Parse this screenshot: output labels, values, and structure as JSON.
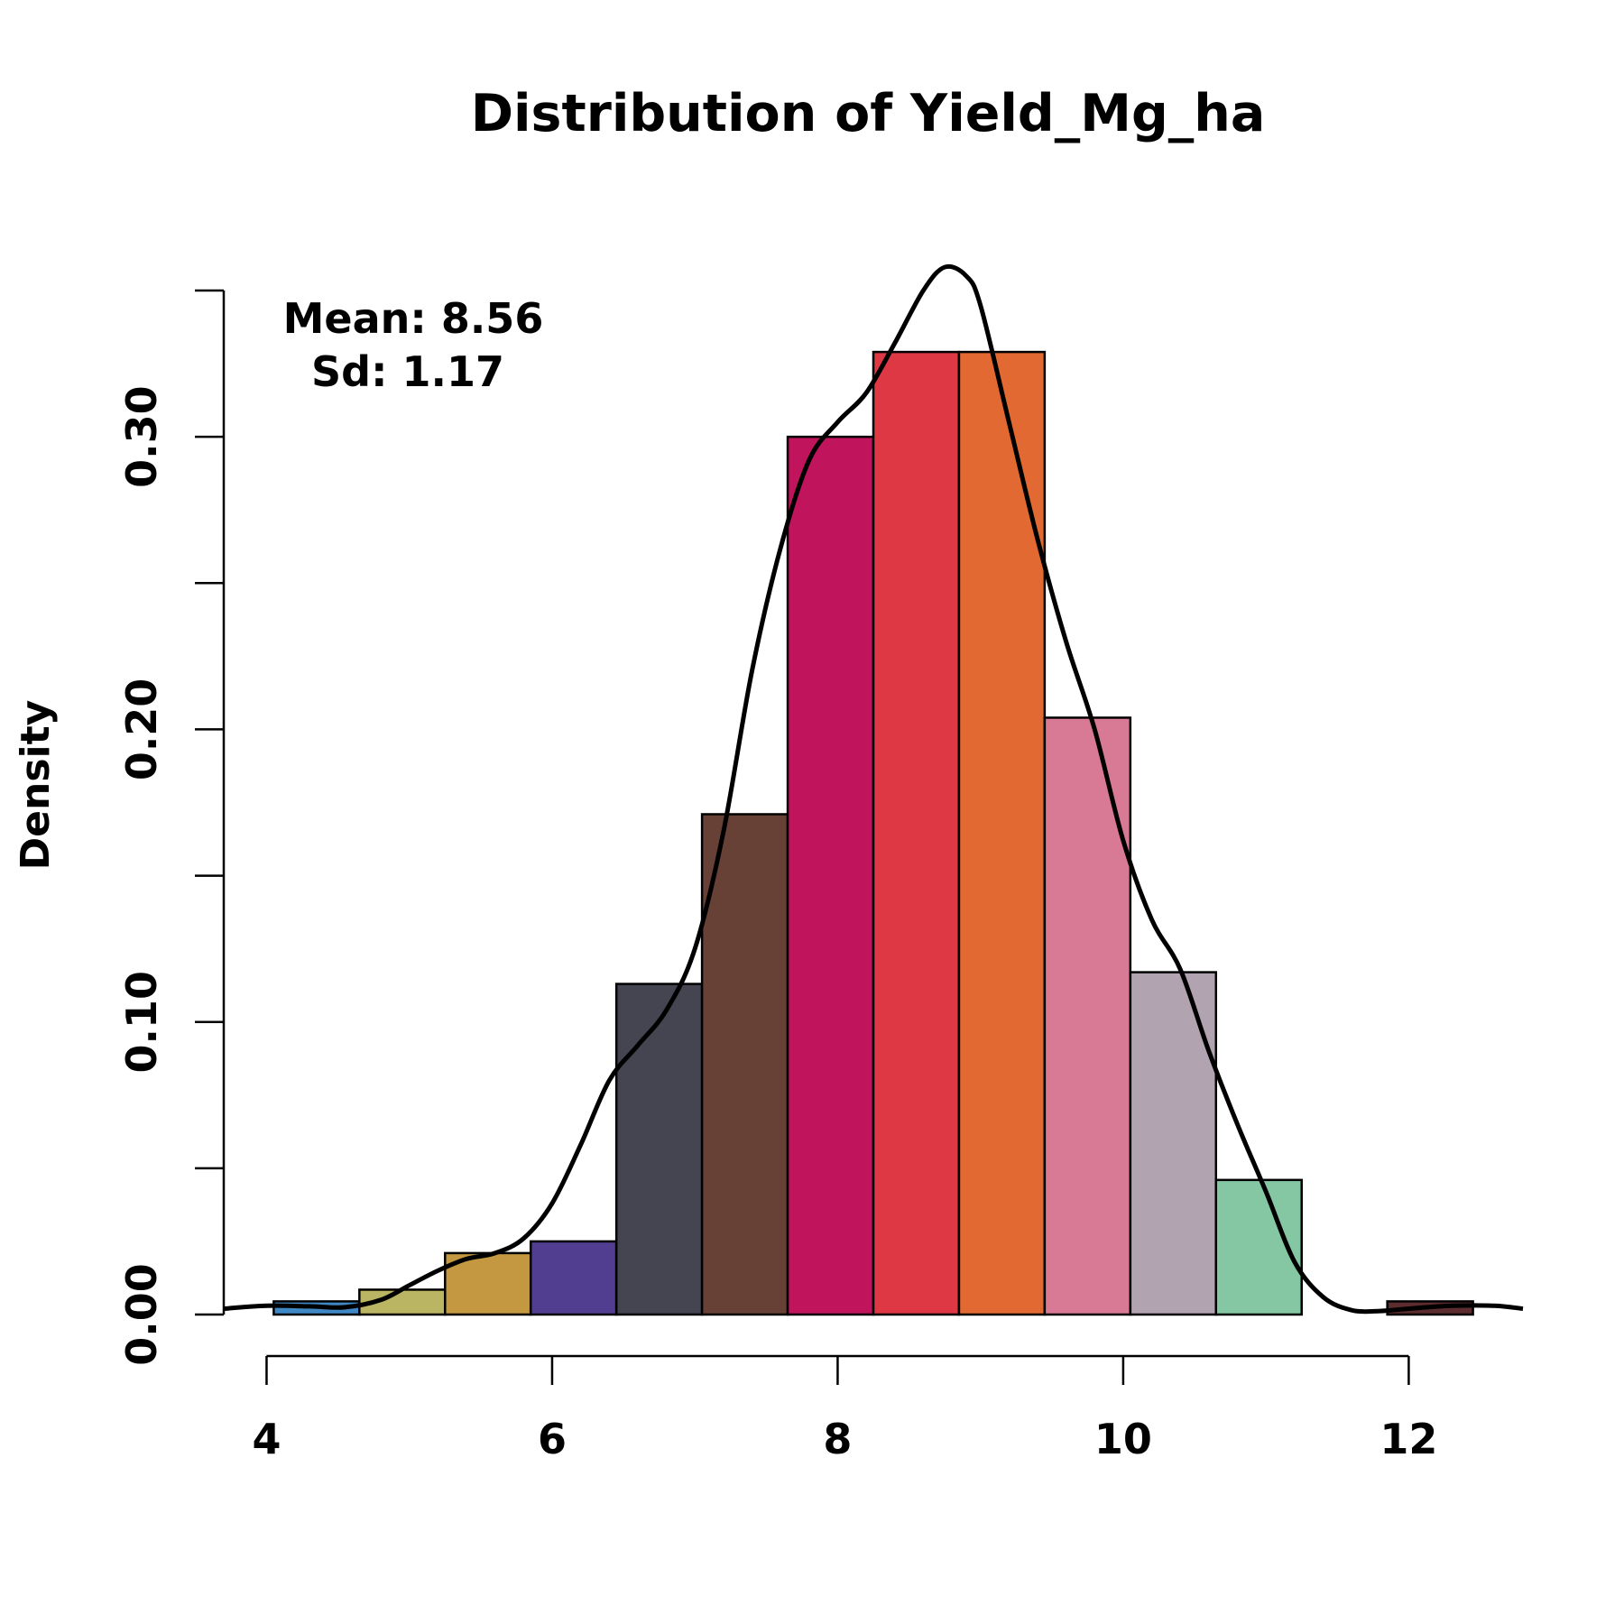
{
  "chart_data": {
    "type": "bar",
    "title": "Distribution of Yield_Mg_ha",
    "xlabel": "",
    "ylabel": "Density",
    "annotation": {
      "mean": "Mean: 8.56",
      "sd": "Sd: 1.17"
    },
    "xlim": [
      3.7,
      12.8
    ],
    "ylim": [
      0,
      0.35
    ],
    "x_ticks": [
      4,
      6,
      8,
      10,
      12
    ],
    "y_ticks": [
      0,
      0.05,
      0.1,
      0.15,
      0.2,
      0.25,
      0.3,
      0.35
    ],
    "y_tick_labels": [
      "0.00",
      "",
      "0.10",
      "",
      "0.20",
      "",
      "0.30",
      ""
    ],
    "bins": [
      {
        "start": 4.05,
        "end": 4.65,
        "density": 0.0045,
        "color": "#3f88c5"
      },
      {
        "start": 4.65,
        "end": 5.25,
        "density": 0.0085,
        "color": "#b9b562"
      },
      {
        "start": 5.25,
        "end": 5.85,
        "density": 0.021,
        "color": "#c39841"
      },
      {
        "start": 5.85,
        "end": 6.45,
        "density": 0.025,
        "color": "#523e91"
      },
      {
        "start": 6.45,
        "end": 7.05,
        "density": 0.113,
        "color": "#454552"
      },
      {
        "start": 7.05,
        "end": 7.65,
        "density": 0.171,
        "color": "#674135"
      },
      {
        "start": 7.65,
        "end": 8.25,
        "density": 0.3,
        "color": "#c0145c"
      },
      {
        "start": 8.25,
        "end": 8.85,
        "density": 0.329,
        "color": "#dd3844"
      },
      {
        "start": 8.85,
        "end": 9.45,
        "density": 0.329,
        "color": "#e26931"
      },
      {
        "start": 9.45,
        "end": 10.05,
        "density": 0.204,
        "color": "#d87a95"
      },
      {
        "start": 10.05,
        "end": 10.65,
        "density": 0.117,
        "color": "#b1a3b0"
      },
      {
        "start": 10.65,
        "end": 11.25,
        "density": 0.046,
        "color": "#84c7a2"
      },
      {
        "start": 11.25,
        "end": 11.85,
        "density": 0,
        "color": "#ffffff"
      },
      {
        "start": 11.85,
        "end": 12.45,
        "density": 0.0045,
        "color": "#5c2c2e"
      }
    ],
    "density_curve": [
      [
        3.7,
        0.002
      ],
      [
        4.0,
        0.003
      ],
      [
        4.3,
        0.0028
      ],
      [
        4.55,
        0.0025
      ],
      [
        4.8,
        0.005
      ],
      [
        5.0,
        0.01
      ],
      [
        5.2,
        0.015
      ],
      [
        5.4,
        0.019
      ],
      [
        5.6,
        0.021
      ],
      [
        5.8,
        0.026
      ],
      [
        6.0,
        0.038
      ],
      [
        6.2,
        0.058
      ],
      [
        6.4,
        0.08
      ],
      [
        6.6,
        0.092
      ],
      [
        6.8,
        0.104
      ],
      [
        7.0,
        0.125
      ],
      [
        7.2,
        0.165
      ],
      [
        7.4,
        0.22
      ],
      [
        7.6,
        0.262
      ],
      [
        7.8,
        0.292
      ],
      [
        8.0,
        0.305
      ],
      [
        8.2,
        0.315
      ],
      [
        8.4,
        0.332
      ],
      [
        8.6,
        0.35
      ],
      [
        8.75,
        0.358
      ],
      [
        8.9,
        0.355
      ],
      [
        9.0,
        0.345
      ],
      [
        9.2,
        0.305
      ],
      [
        9.4,
        0.265
      ],
      [
        9.6,
        0.23
      ],
      [
        9.8,
        0.2
      ],
      [
        10.0,
        0.162
      ],
      [
        10.2,
        0.135
      ],
      [
        10.4,
        0.118
      ],
      [
        10.6,
        0.09
      ],
      [
        10.8,
        0.065
      ],
      [
        11.0,
        0.042
      ],
      [
        11.2,
        0.018
      ],
      [
        11.4,
        0.006
      ],
      [
        11.6,
        0.0015
      ],
      [
        11.8,
        0.0012
      ],
      [
        12.0,
        0.002
      ],
      [
        12.3,
        0.003
      ],
      [
        12.6,
        0.003
      ],
      [
        12.8,
        0.002
      ]
    ]
  }
}
